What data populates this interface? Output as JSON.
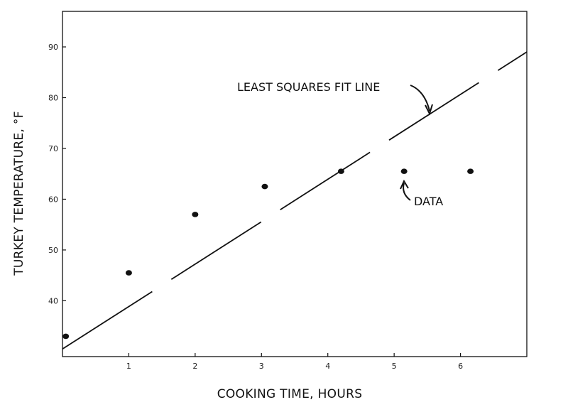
{
  "chart_data": {
    "type": "scatter",
    "title": "",
    "xlabel": "COOKING TIME, HOURS",
    "ylabel": "TURKEY TEMPERATURE, °F",
    "xlim": [
      0,
      7
    ],
    "ylim": [
      29,
      97
    ],
    "x_ticks": [
      1,
      2,
      3,
      4,
      5,
      6
    ],
    "y_ticks": [
      40,
      50,
      60,
      70,
      80,
      90
    ],
    "grid": false,
    "series": [
      {
        "points": [
          {
            "x": 0.05,
            "y": 33
          },
          {
            "x": 1.0,
            "y": 45.5
          },
          {
            "x": 2.0,
            "y": 57
          },
          {
            "x": 3.05,
            "y": 62.5
          },
          {
            "x": 4.2,
            "y": 65.5
          },
          {
            "x": 5.15,
            "y": 65.5
          },
          {
            "x": 6.15,
            "y": 65.5
          }
        ]
      }
    ],
    "fit_line": {
      "x": [
        0,
        7
      ],
      "y": [
        30.5,
        89
      ]
    },
    "annotations": [
      {
        "text": "LEAST SQUARES FIT LINE"
      },
      {
        "text": "DATA"
      }
    ]
  }
}
